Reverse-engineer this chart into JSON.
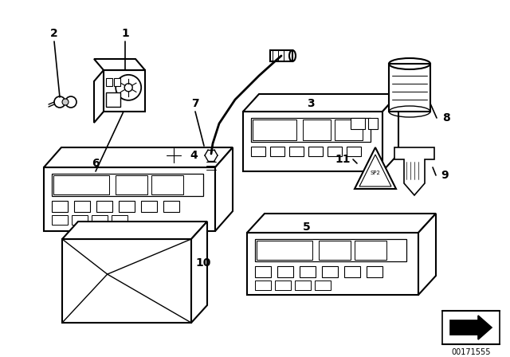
{
  "bg_color": "#ffffff",
  "line_color": "#000000",
  "fig_width": 6.4,
  "fig_height": 4.48,
  "dpi": 100,
  "diagram_id": "00171555",
  "xlim": [
    0,
    640
  ],
  "ylim": [
    0,
    448
  ]
}
